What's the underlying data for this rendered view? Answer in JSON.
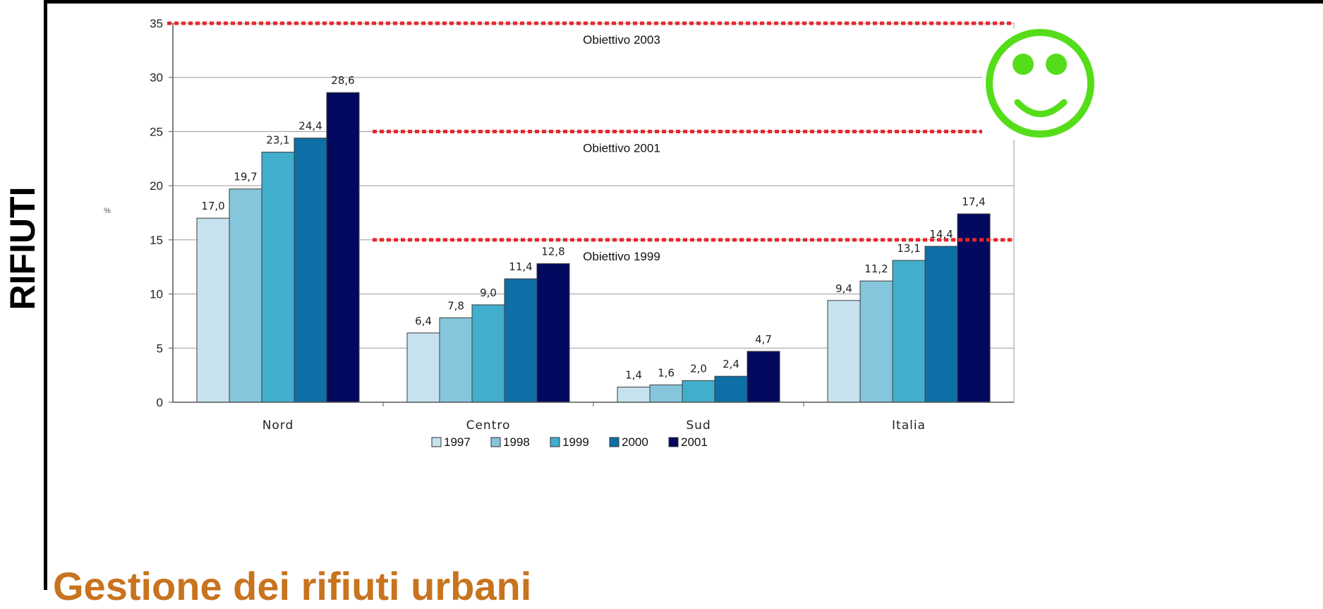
{
  "slide": {
    "side_title": "RIFIUTI",
    "bottom_text": "Gestione dei rifiuti urbani"
  },
  "chart_data": {
    "type": "bar",
    "title": "",
    "xlabel": "",
    "ylabel": "%",
    "ylim": [
      0,
      35
    ],
    "yticks": [
      0,
      5,
      10,
      15,
      20,
      25,
      30,
      35
    ],
    "grid": true,
    "legend_position": "bottom",
    "categories": [
      "Nord",
      "Centro",
      "Sud",
      "Italia"
    ],
    "series": [
      {
        "name": "1997",
        "color": "#c6e2ee",
        "values": [
          17.0,
          6.4,
          1.4,
          9.4
        ],
        "labels": [
          "17,0",
          "6,4",
          "1,4",
          "9,4"
        ]
      },
      {
        "name": "1998",
        "color": "#86c6dc",
        "values": [
          19.7,
          7.8,
          1.6,
          11.2
        ],
        "labels": [
          "19,7",
          "7,8",
          "1,6",
          "11,2"
        ]
      },
      {
        "name": "1999",
        "color": "#42aecd",
        "values": [
          23.1,
          9.0,
          2.0,
          13.1
        ],
        "labels": [
          "23,1",
          "9,0",
          "2,0",
          "13,1"
        ]
      },
      {
        "name": "2000",
        "color": "#0e6fa6",
        "values": [
          24.4,
          11.4,
          2.4,
          14.4
        ],
        "labels": [
          "24,4",
          "11,4",
          "2,4",
          "14,4"
        ]
      },
      {
        "name": "2001",
        "color": "#03095e",
        "values": [
          28.6,
          12.8,
          4.7,
          17.4
        ],
        "labels": [
          "28,6",
          "12,8",
          "4,7",
          "17,4"
        ]
      }
    ],
    "targets": [
      {
        "label": "Obiettivo 2003",
        "value": 35,
        "from_category": 0
      },
      {
        "label": "Obiettivo 2001",
        "value": 25,
        "from_category": 1
      },
      {
        "label": "Obiettivo 1999",
        "value": 15,
        "from_category": 1
      }
    ],
    "target_color": "#e8262a"
  },
  "icon": {
    "name": "smiley-face-icon",
    "color": "#55dd1a"
  }
}
